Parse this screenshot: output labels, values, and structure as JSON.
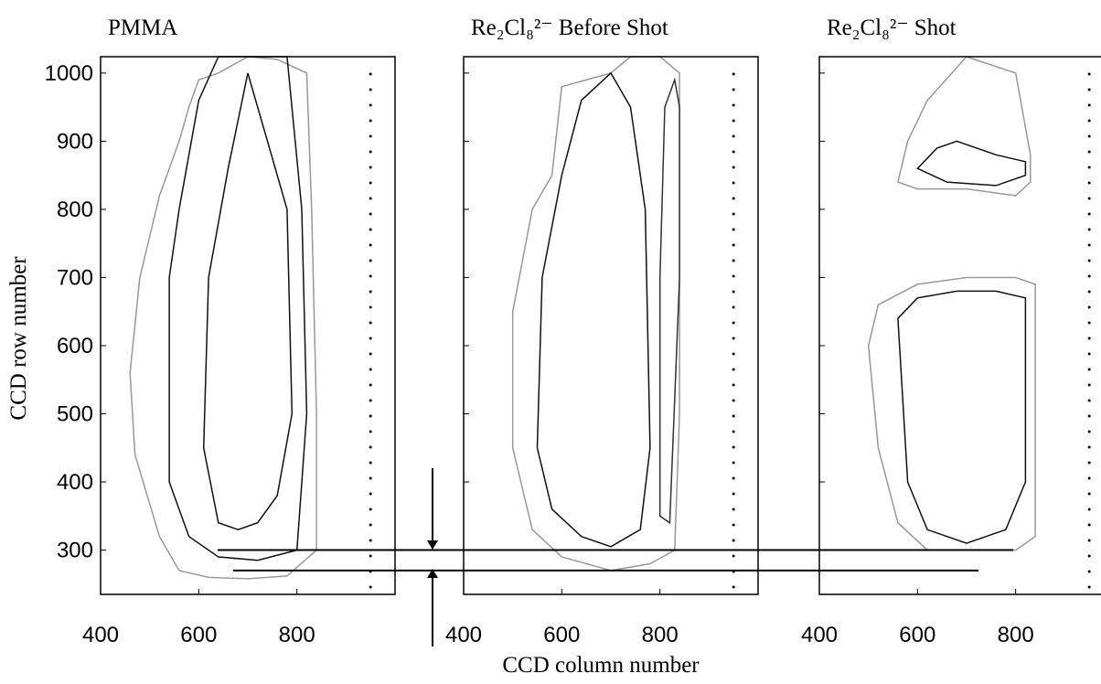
{
  "chart_data": [
    {
      "type": "contour",
      "title": "PMMA",
      "ylabel": "CCD row number",
      "xlim": [
        400,
        1000
      ],
      "ylim": [
        235,
        1024
      ],
      "xticks": [
        400,
        600,
        800
      ],
      "yticks": [
        300,
        400,
        500,
        600,
        700,
        800,
        900,
        1000
      ],
      "dotted_x": 950,
      "reference_lines": [
        300,
        270
      ],
      "contours": [
        {
          "color": "#999999",
          "x": [
            560,
            520,
            480,
            460,
            470,
            520,
            560,
            620,
            700,
            780,
            840,
            840,
            830,
            820,
            760,
            700,
            640,
            600,
            580
          ],
          "y": [
            900,
            820,
            700,
            560,
            440,
            320,
            270,
            260,
            258,
            262,
            300,
            500,
            800,
            1000,
            1020,
            1024,
            1000,
            990,
            950
          ]
        },
        {
          "color": "#111111",
          "x": [
            560,
            540,
            540,
            580,
            640,
            720,
            800,
            820,
            810,
            780,
            700,
            640,
            600
          ],
          "y": [
            800,
            700,
            400,
            320,
            290,
            285,
            300,
            500,
            800,
            1024,
            1024,
            1024,
            960
          ]
        },
        {
          "color": "#111111",
          "x": [
            620,
            610,
            640,
            680,
            720,
            760,
            790,
            780,
            740,
            700,
            660
          ],
          "y": [
            700,
            450,
            340,
            330,
            340,
            380,
            500,
            800,
            900,
            1000,
            860
          ]
        }
      ]
    },
    {
      "type": "contour",
      "title": "Re₂Cl₈²⁻  Before Shot",
      "xlabel": "CCD column number",
      "xlim": [
        400,
        1000
      ],
      "ylim": [
        235,
        1024
      ],
      "xticks": [
        400,
        600,
        800
      ],
      "yticks": [
        300,
        400,
        500,
        600,
        700,
        800,
        900,
        1000
      ],
      "dotted_x": 950,
      "contours": [
        {
          "color": "#999999",
          "x": [
            540,
            500,
            500,
            540,
            600,
            700,
            780,
            830,
            840,
            840,
            800,
            740,
            700,
            600,
            580
          ],
          "y": [
            800,
            650,
            450,
            330,
            290,
            270,
            280,
            300,
            500,
            1000,
            1024,
            1024,
            1000,
            980,
            850
          ]
        },
        {
          "color": "#111111",
          "x": [
            560,
            550,
            580,
            640,
            700,
            760,
            780,
            770,
            740,
            700,
            640,
            600
          ],
          "y": [
            700,
            450,
            360,
            320,
            305,
            330,
            450,
            800,
            950,
            1000,
            960,
            850
          ]
        },
        {
          "color": "#333333",
          "x": [
            800,
            800,
            810,
            830,
            840,
            840,
            820
          ],
          "y": [
            350,
            700,
            950,
            990,
            950,
            700,
            340
          ]
        }
      ]
    },
    {
      "type": "contour",
      "title": "Re₂Cl₈²⁻  Shot",
      "xlim": [
        400,
        1000
      ],
      "ylim": [
        235,
        1024
      ],
      "xticks": [
        400,
        600,
        800
      ],
      "yticks": [
        300,
        400,
        500,
        600,
        700,
        800,
        900,
        1000
      ],
      "dotted_x": 950,
      "contours": [
        {
          "color": "#999999",
          "x": [
            560,
            600,
            700,
            800,
            830,
            830,
            800,
            700,
            620,
            580
          ],
          "y": [
            840,
            830,
            830,
            820,
            840,
            880,
            1000,
            1024,
            960,
            900
          ]
        },
        {
          "color": "#111111",
          "x": [
            600,
            660,
            760,
            820,
            820,
            760,
            680,
            640
          ],
          "y": [
            860,
            840,
            835,
            850,
            870,
            880,
            900,
            890
          ]
        },
        {
          "color": "#999999",
          "x": [
            500,
            520,
            560,
            620,
            700,
            800,
            840,
            840,
            800,
            700,
            600,
            520
          ],
          "y": [
            600,
            450,
            340,
            300,
            300,
            300,
            320,
            690,
            700,
            700,
            690,
            660
          ]
        },
        {
          "color": "#111111",
          "x": [
            560,
            580,
            620,
            700,
            780,
            820,
            820,
            760,
            680,
            600
          ],
          "y": [
            640,
            400,
            330,
            310,
            330,
            400,
            670,
            680,
            680,
            670
          ]
        }
      ]
    }
  ]
}
